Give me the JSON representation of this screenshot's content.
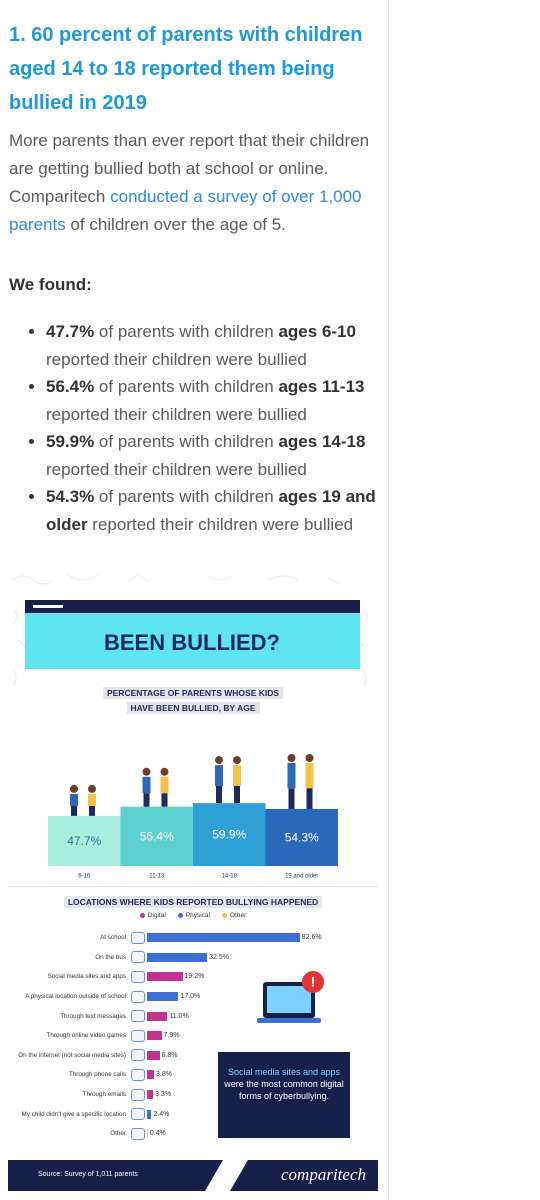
{
  "article": {
    "title": "1. 60 percent of parents with children aged 14 to 18 reported them being bullied in 2019",
    "intro_before": "More parents than ever report that their children are getting bullied both at school or online. Comparitech ",
    "intro_link": "conducted a survey of over 1,000 parents",
    "intro_after": " of children over the age of 5.",
    "found": "We found:",
    "bullets": [
      {
        "stat": "47.7%",
        "text1": " of parents with children ",
        "bold": "ages 6-10",
        "text2": " reported their children were bullied"
      },
      {
        "stat": "56.4%",
        "text1": " of parents with children ",
        "bold": "ages 11-13",
        "text2": " reported their children were bullied"
      },
      {
        "stat": "59.9%",
        "text1": " of parents with children ",
        "bold": "ages 14-18",
        "text2": " reported their children were bullied"
      },
      {
        "stat": "54.3%",
        "text1": " of parents with children ",
        "bold": "ages 19 and older",
        "text2": " reported their children were bullied"
      }
    ]
  },
  "infographic": {
    "title": "BEEN BULLIED?",
    "callout_highlight": "Social media sites and apps",
    "callout_rest": " were the most common digital forms of cyberbullying.",
    "source": "Source: Survey of 1,011 parents",
    "logo": "comparitech"
  },
  "chart_data": [
    {
      "type": "bar",
      "title": "PERCENTAGE OF PARENTS WHOSE KIDS HAVE BEEN BULLIED, BY AGE",
      "categories": [
        "6-10",
        "11-13",
        "14-18",
        "19 and older"
      ],
      "values": [
        47.7,
        56.4,
        59.9,
        54.3
      ],
      "value_labels": [
        "47.7%",
        "56.4%",
        "59.9%",
        "54.3%"
      ],
      "colors": [
        "#a9efe0",
        "#5ccfd1",
        "#2e9fd7",
        "#2b69b8"
      ]
    },
    {
      "type": "hbar",
      "title": "LOCATIONS WHERE KIDS REPORTED BULLYING HAPPENED",
      "categories": [
        "At school",
        "On the bus",
        "Social media sites and apps",
        "A physical location outside of school",
        "Through text messages",
        "Through online video games",
        "On the internet (not social media sites)",
        "Through phone calls",
        "Through emails",
        "My child didn't give a specific location",
        "Other"
      ],
      "series": [
        {
          "name": "Digital",
          "color": "#c2338f",
          "values": [
            null,
            null,
            19.2,
            null,
            11.0,
            7.9,
            6.8,
            3.8,
            3.3,
            null,
            null
          ],
          "value_labels": [
            null,
            null,
            "19.2%",
            null,
            "11.0%",
            "7.9%",
            "6.8%",
            "3.8%",
            "3.3%",
            null,
            null
          ]
        },
        {
          "name": "Physical",
          "color": "#3e6fd8",
          "values": [
            82.6,
            32.5,
            null,
            17.0,
            null,
            null,
            null,
            null,
            null,
            2.4,
            null
          ],
          "value_labels": [
            "82.6%",
            "32.5%",
            null,
            "17.0%",
            null,
            null,
            null,
            null,
            null,
            "2.4%",
            null
          ]
        },
        {
          "name": "Other",
          "color": "#f2c24a",
          "values": [
            null,
            null,
            null,
            null,
            null,
            null,
            null,
            null,
            null,
            null,
            0.4
          ],
          "value_labels": [
            null,
            null,
            null,
            null,
            null,
            null,
            null,
            null,
            null,
            null,
            "0.4%"
          ]
        }
      ]
    }
  ]
}
